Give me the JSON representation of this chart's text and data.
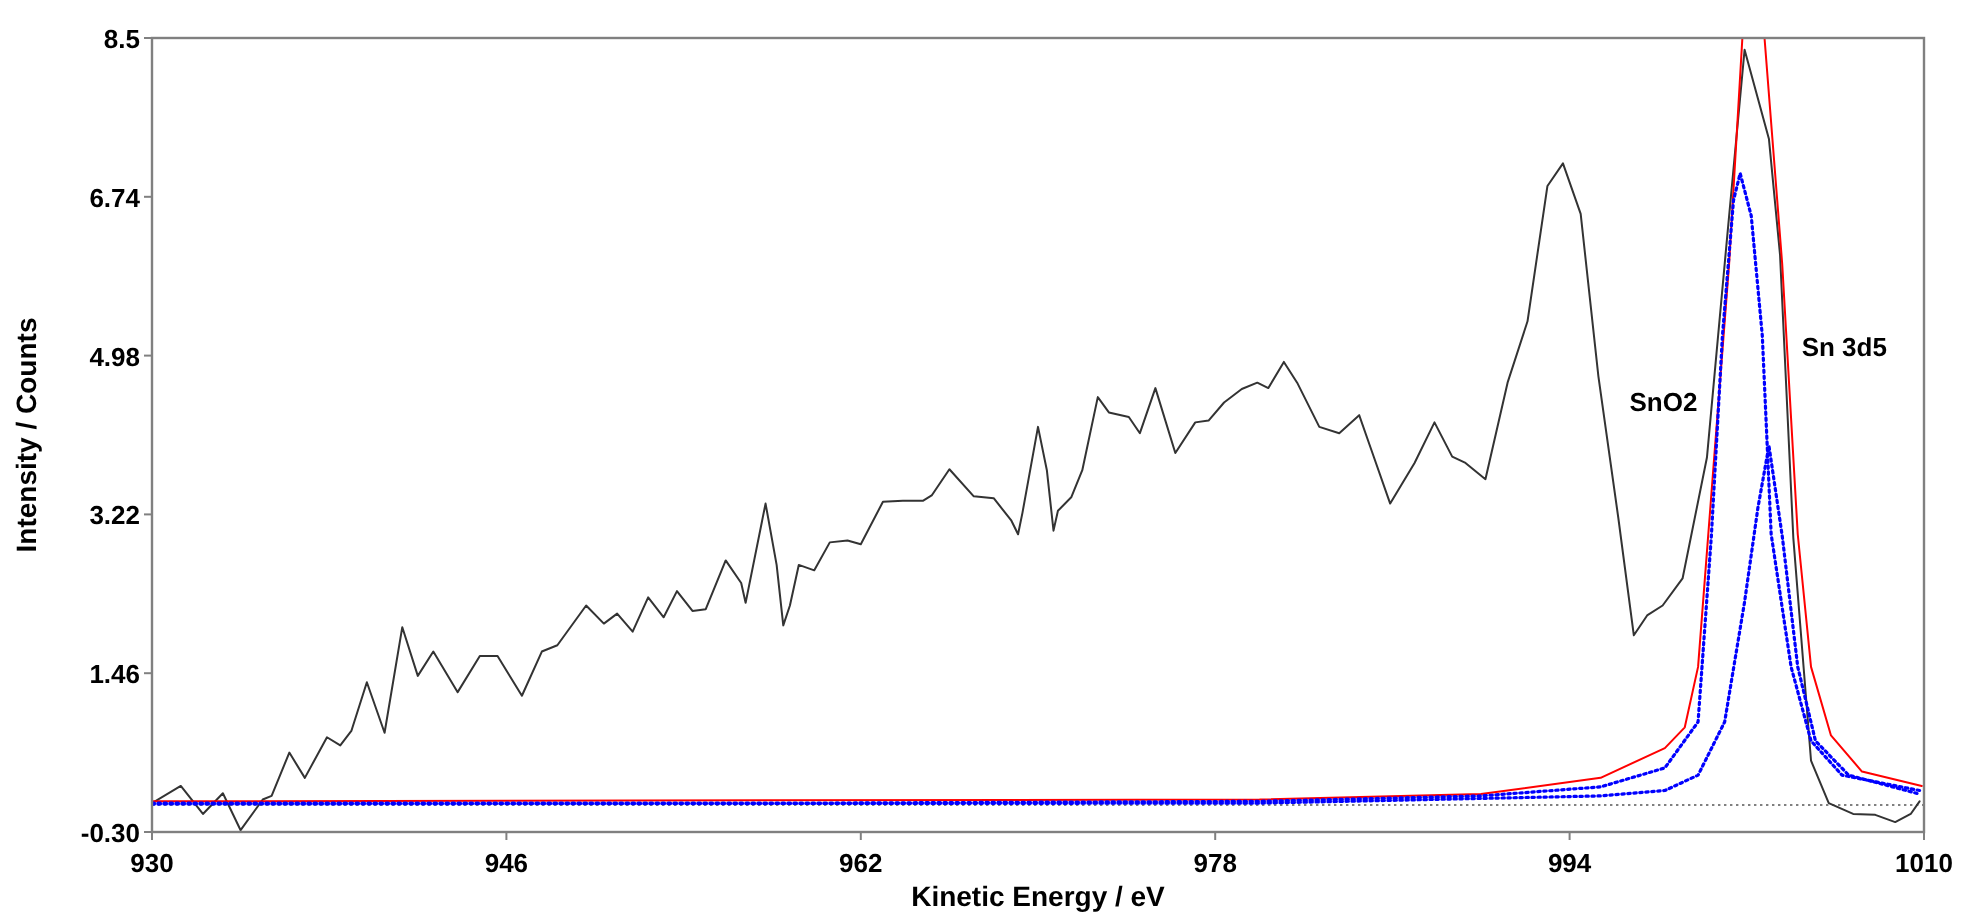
{
  "chart_data": {
    "type": "line",
    "xlabel": "Kinetic Energy / eV",
    "ylabel": "Intensity / Counts",
    "xlim": [
      930,
      1010
    ],
    "xticks": [
      930,
      946,
      962,
      978,
      994,
      1010
    ],
    "ylim": [
      -0.3,
      8.5
    ],
    "yticks": [
      {
        "value": -0.3,
        "label": "-0.30"
      },
      1.46,
      3.22,
      4.98,
      6.74,
      8.5
    ],
    "grid": false,
    "ref_lines": [
      {
        "axis": "y",
        "value": 0,
        "color": "#808080",
        "line_style": "dotted"
      }
    ],
    "annotations": [
      "SnO2",
      "Sn 3d5"
    ],
    "series": [
      {
        "color": "#333333",
        "line_style": "solid",
        "x": [
          930,
          931.3,
          932.3,
          933.2,
          934.0,
          935.0,
          935.4,
          936.2,
          936.9,
          937.9,
          938.5,
          939.0,
          939.7,
          940.5,
          941.3,
          942.0,
          942.7,
          943.8,
          944.8,
          945.6,
          946.7,
          947.6,
          948.3,
          949.6,
          950.4,
          951.0,
          951.7,
          952.4,
          953.1,
          953.7,
          954.4,
          955.0,
          955.9,
          956.6,
          956.8,
          957.7,
          958.2,
          958.5,
          958.8,
          959.2,
          959.9,
          960.6,
          961.4,
          962.0,
          963.0,
          963.9,
          964.8,
          965.2,
          966.0,
          967.1,
          968.0,
          968.8,
          969.1,
          969.3,
          970.0,
          970.4,
          970.7,
          970.9,
          971.5,
          972.0,
          972.7,
          973.2,
          974.1,
          974.6,
          975.3,
          976.2,
          977.1,
          977.7,
          978.4,
          979.2,
          979.9,
          980.4,
          981.1,
          981.7,
          982.7,
          983.6,
          984.5,
          985.0,
          985.9,
          987.0,
          987.9,
          988.7,
          989.3,
          990.2,
          991.2,
          992.1,
          993.0,
          993.7,
          994.5,
          995.3,
          996.2,
          996.9,
          997.5,
          998.2,
          999.1,
          1000.2,
          1001.1,
          1001.9,
          1003.0,
          1003.5,
          1004.1,
          1004.9,
          1005.7,
          1006.8,
          1007.8,
          1008.7,
          1009.4,
          1009.8
        ],
        "values": [
          0.02,
          0.21,
          -0.1,
          0.13,
          -0.28,
          0.06,
          0.1,
          0.58,
          0.3,
          0.75,
          0.66,
          0.82,
          1.36,
          0.8,
          1.97,
          1.43,
          1.7,
          1.25,
          1.65,
          1.65,
          1.21,
          1.7,
          1.77,
          2.21,
          2.01,
          2.12,
          1.92,
          2.3,
          2.08,
          2.37,
          2.15,
          2.17,
          2.71,
          2.46,
          2.24,
          3.34,
          2.66,
          1.99,
          2.21,
          2.66,
          2.6,
          2.91,
          2.93,
          2.89,
          3.36,
          3.37,
          3.37,
          3.43,
          3.72,
          3.42,
          3.4,
          3.15,
          3.0,
          3.24,
          4.19,
          3.71,
          3.04,
          3.26,
          3.41,
          3.71,
          4.52,
          4.35,
          4.3,
          4.12,
          4.62,
          3.9,
          4.24,
          4.26,
          4.46,
          4.61,
          4.68,
          4.62,
          4.91,
          4.68,
          4.19,
          4.12,
          4.32,
          3.97,
          3.34,
          3.79,
          4.24,
          3.86,
          3.79,
          3.61,
          4.68,
          5.36,
          6.86,
          7.11,
          6.55,
          4.75,
          3.18,
          1.88,
          2.1,
          2.21,
          2.51,
          3.85,
          6.26,
          8.37,
          7.38,
          6.1,
          2.96,
          0.49,
          0.02,
          -0.1,
          -0.11,
          -0.19,
          -0.1,
          0.04
        ]
      },
      {
        "color": "#ff0000",
        "line_style": "solid",
        "x": [
          930,
          980,
          990,
          995.4,
          998.3,
          999.2,
          999.8,
          1000.5,
          1001.2,
          1001.8,
          1002.3,
          1002.8,
          1003.6,
          1004.3,
          1004.9,
          1005.8,
          1007.2,
          1009.9
        ],
        "values": [
          0.04,
          0.06,
          0.12,
          0.3,
          0.63,
          0.86,
          1.53,
          3.76,
          5.99,
          8.5,
          null,
          8.5,
          5.99,
          3.0,
          1.53,
          0.77,
          0.37,
          0.21
        ]
      },
      {
        "color": "#0000ff",
        "line_style": "dotted",
        "x": [
          930,
          960,
          980,
          990,
          995.4,
          998.3,
          999.8,
          1000.4,
          1000.9,
          1001.4,
          1001.7,
          1002.2,
          1002.7,
          1003.1,
          1004.0,
          1004.9,
          1006.3,
          1009.8
        ],
        "values": [
          0.02,
          0.02,
          0.04,
          0.1,
          0.2,
          0.41,
          0.92,
          2.98,
          5.2,
          6.7,
          7.0,
          6.53,
          5.2,
          3.0,
          1.53,
          0.71,
          0.33,
          0.16
        ]
      },
      {
        "color": "#0000ff",
        "line_style": "dotted",
        "x": [
          930,
          980,
          995.4,
          998.3,
          999.8,
          1001.0,
          1001.9,
          1002.5,
          1003.0,
          1003.6,
          1004.3,
          1005.1,
          1006.6,
          1009.8
        ],
        "values": [
          0.01,
          0.02,
          0.1,
          0.16,
          0.33,
          0.92,
          2.25,
          3.29,
          3.98,
          2.98,
          1.53,
          0.71,
          0.33,
          0.12
        ]
      }
    ]
  }
}
